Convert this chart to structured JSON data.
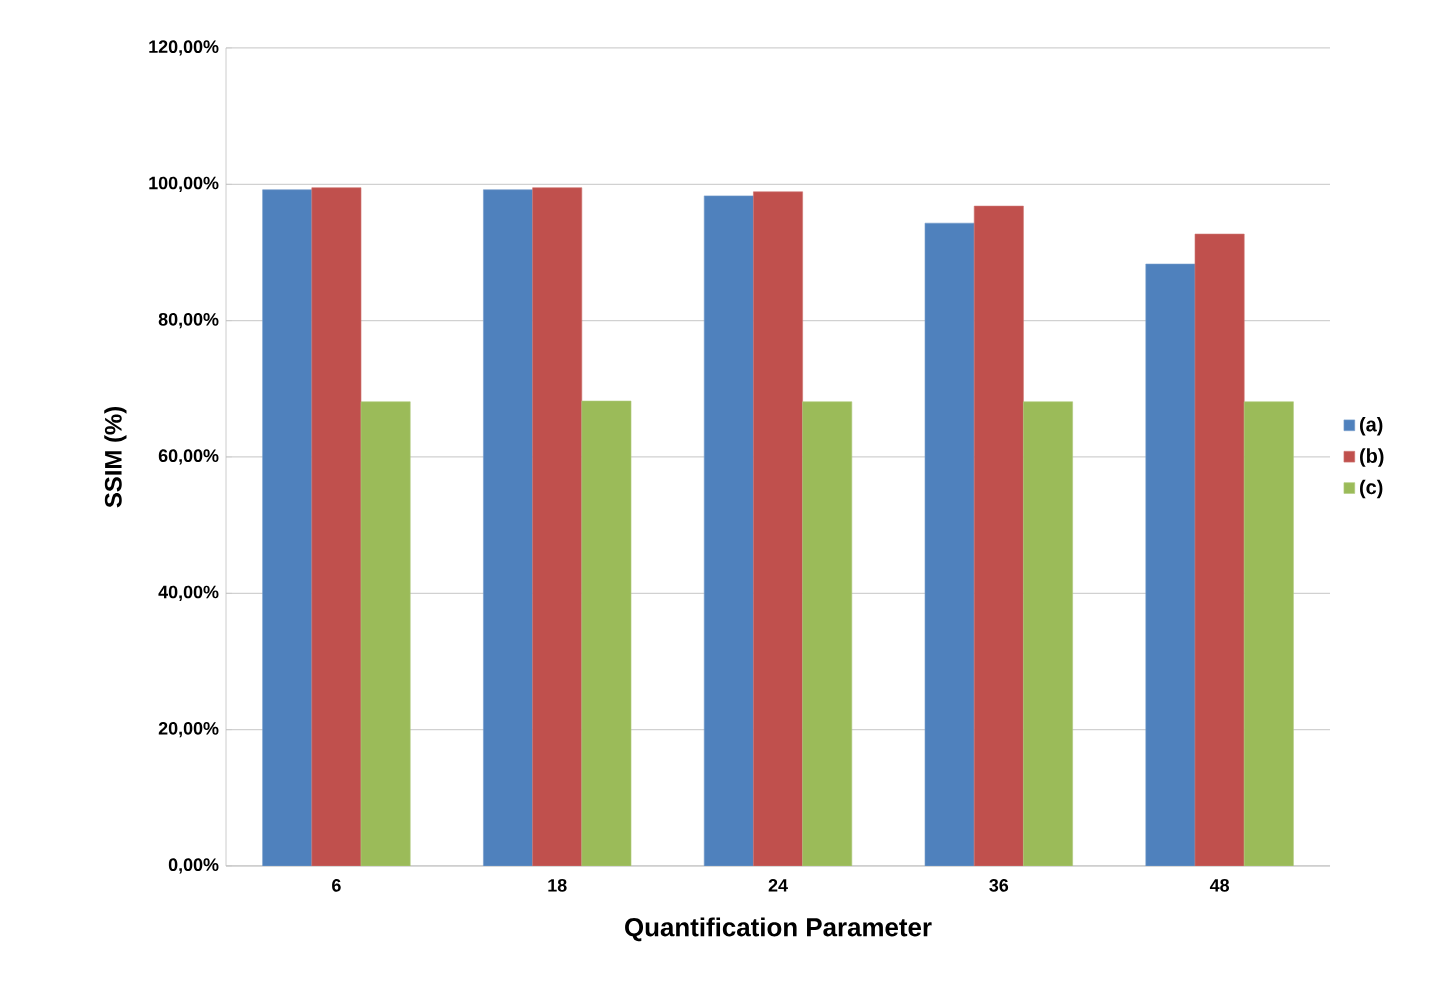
{
  "chart_data": {
    "type": "bar",
    "xlabel": "Quantification Parameter",
    "ylabel": "SSIM (%)",
    "categories": [
      "6",
      "18",
      "24",
      "36",
      "48"
    ],
    "series": [
      {
        "name": "(a)",
        "color": "#4f81bd",
        "values": [
          99.2,
          99.2,
          98.3,
          94.3,
          88.3
        ]
      },
      {
        "name": "(b)",
        "color": "#c0504d",
        "values": [
          99.5,
          99.5,
          98.9,
          96.8,
          92.7
        ]
      },
      {
        "name": "(c)",
        "color": "#9bbb59",
        "values": [
          68.1,
          68.2,
          68.1,
          68.1,
          68.1
        ]
      }
    ],
    "ylim": [
      0,
      120
    ],
    "yticks": [
      {
        "value": 0,
        "label": "0,00%"
      },
      {
        "value": 20,
        "label": "20,00%"
      },
      {
        "value": 40,
        "label": "40,00%"
      },
      {
        "value": 60,
        "label": "60,00%"
      },
      {
        "value": 80,
        "label": "80,00%"
      },
      {
        "value": 100,
        "label": "100,00%"
      },
      {
        "value": 120,
        "label": "120,00%"
      }
    ],
    "grid": "y",
    "legend": "right"
  }
}
